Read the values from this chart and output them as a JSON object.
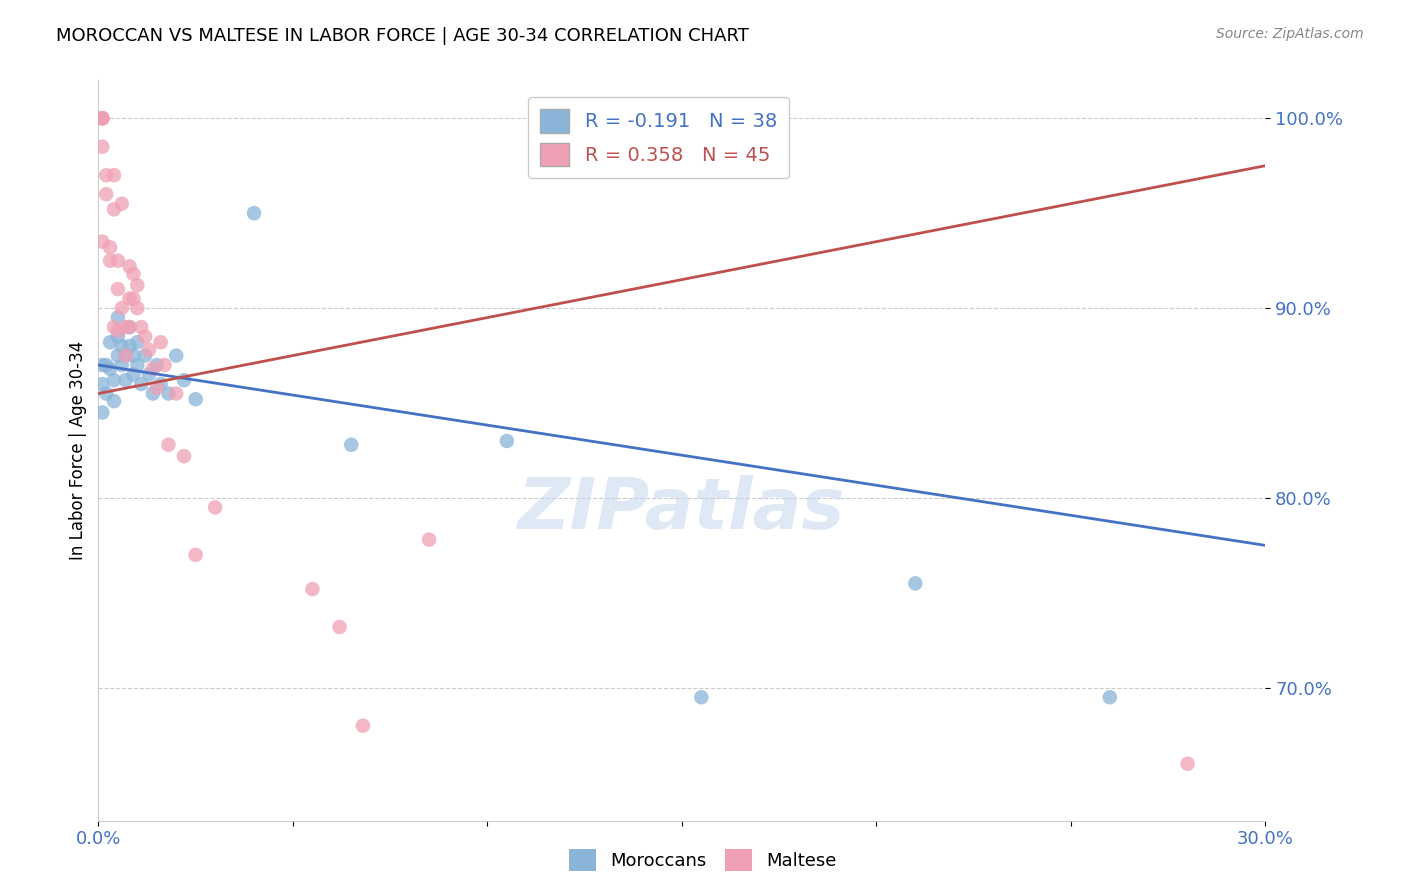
{
  "title": "MOROCCAN VS MALTESE IN LABOR FORCE | AGE 30-34 CORRELATION CHART",
  "source": "Source: ZipAtlas.com",
  "xlabel": "",
  "ylabel": "In Labor Force | Age 30-34",
  "xlim": [
    0.0,
    0.3
  ],
  "ylim": [
    0.63,
    1.02
  ],
  "yticks": [
    0.7,
    0.8,
    0.9,
    1.0
  ],
  "ytick_labels": [
    "70.0%",
    "80.0%",
    "90.0%",
    "100.0%"
  ],
  "xticks": [
    0.0,
    0.05,
    0.1,
    0.15,
    0.2,
    0.25,
    0.3
  ],
  "xtick_labels": [
    "0.0%",
    "",
    "",
    "",
    "",
    "",
    "30.0%"
  ],
  "blue_label": "Moroccans",
  "pink_label": "Maltese",
  "blue_R": -0.191,
  "blue_N": 38,
  "pink_R": 0.358,
  "pink_N": 45,
  "blue_color": "#8ab4d8",
  "pink_color": "#f0a0b4",
  "blue_line_color": "#4472c4",
  "pink_line_color": "#c0504d",
  "watermark": "ZIPatlas",
  "blue_points_x": [
    0.001,
    0.001,
    0.001,
    0.002,
    0.002,
    0.003,
    0.003,
    0.004,
    0.004,
    0.005,
    0.005,
    0.005,
    0.006,
    0.006,
    0.007,
    0.007,
    0.008,
    0.008,
    0.009,
    0.009,
    0.01,
    0.01,
    0.011,
    0.012,
    0.013,
    0.014,
    0.015,
    0.016,
    0.018,
    0.02,
    0.022,
    0.025,
    0.04,
    0.065,
    0.105,
    0.155,
    0.21,
    0.26
  ],
  "blue_points_y": [
    0.87,
    0.86,
    0.845,
    0.87,
    0.855,
    0.882,
    0.868,
    0.862,
    0.851,
    0.895,
    0.885,
    0.875,
    0.88,
    0.87,
    0.875,
    0.862,
    0.89,
    0.88,
    0.875,
    0.865,
    0.882,
    0.87,
    0.86,
    0.875,
    0.865,
    0.855,
    0.87,
    0.86,
    0.855,
    0.875,
    0.862,
    0.852,
    0.95,
    0.828,
    0.83,
    0.695,
    0.755,
    0.695
  ],
  "pink_points_x": [
    0.001,
    0.001,
    0.001,
    0.001,
    0.001,
    0.001,
    0.002,
    0.002,
    0.003,
    0.003,
    0.004,
    0.004,
    0.004,
    0.005,
    0.005,
    0.005,
    0.006,
    0.006,
    0.007,
    0.007,
    0.008,
    0.008,
    0.008,
    0.009,
    0.009,
    0.01,
    0.01,
    0.011,
    0.012,
    0.013,
    0.014,
    0.015,
    0.016,
    0.017,
    0.018,
    0.02,
    0.022,
    0.025,
    0.03,
    0.055,
    0.062,
    0.068,
    0.085,
    0.155,
    0.28
  ],
  "pink_points_y": [
    1.0,
    1.0,
    1.0,
    1.0,
    0.985,
    0.935,
    0.97,
    0.96,
    0.932,
    0.925,
    0.97,
    0.952,
    0.89,
    0.925,
    0.91,
    0.888,
    0.955,
    0.9,
    0.89,
    0.875,
    0.922,
    0.905,
    0.89,
    0.918,
    0.905,
    0.912,
    0.9,
    0.89,
    0.885,
    0.878,
    0.868,
    0.858,
    0.882,
    0.87,
    0.828,
    0.855,
    0.822,
    0.77,
    0.795,
    0.752,
    0.732,
    0.68,
    0.778,
    1.0,
    0.66
  ],
  "blue_trendline_x": [
    0.0,
    0.3
  ],
  "blue_trendline_y": [
    0.87,
    0.775
  ],
  "pink_trendline_x": [
    0.0,
    0.3
  ],
  "pink_trendline_y": [
    0.855,
    0.975
  ]
}
